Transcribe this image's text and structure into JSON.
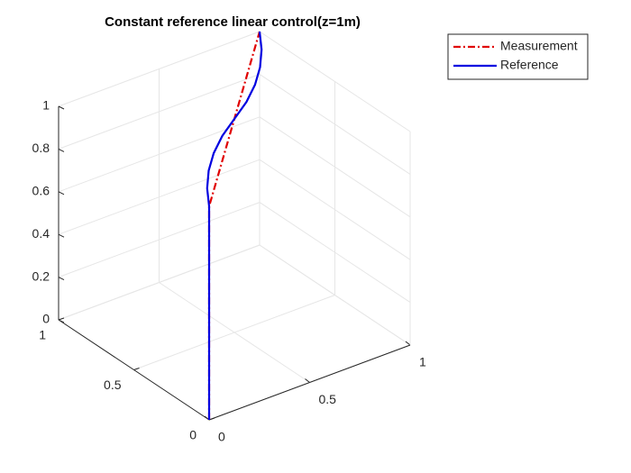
{
  "chart_data": {
    "type": "line3d",
    "title": "Constant reference linear control(z=1m)",
    "xlim": [
      0,
      1
    ],
    "ylim": [
      0,
      1
    ],
    "zlim": [
      0,
      1
    ],
    "xticks": [
      0,
      0.5,
      1
    ],
    "yticks": [
      0,
      0.5,
      1
    ],
    "zticks": [
      0,
      0.2,
      0.4,
      0.6,
      0.8,
      1
    ],
    "grid": true,
    "legend_location": "northeastoutside",
    "series": [
      {
        "name": "Measurement",
        "color": "#e00000",
        "line_style": "dash-dot",
        "x": [
          0,
          0,
          1
        ],
        "y": [
          0,
          0,
          1
        ],
        "z": [
          0,
          1,
          1
        ]
      },
      {
        "name": "Reference",
        "color": "#0000e0",
        "line_style": "solid",
        "x": [
          0,
          0,
          0.08,
          0.17,
          0.27,
          0.38,
          0.5,
          0.62,
          0.73,
          0.83,
          0.92,
          1
        ],
        "y": [
          0,
          0,
          0.12,
          0.23,
          0.33,
          0.42,
          0.5,
          0.58,
          0.67,
          0.77,
          0.88,
          1
        ],
        "z": [
          0,
          1,
          1,
          1,
          1,
          1,
          1,
          1,
          1,
          1,
          1,
          1
        ]
      }
    ]
  }
}
